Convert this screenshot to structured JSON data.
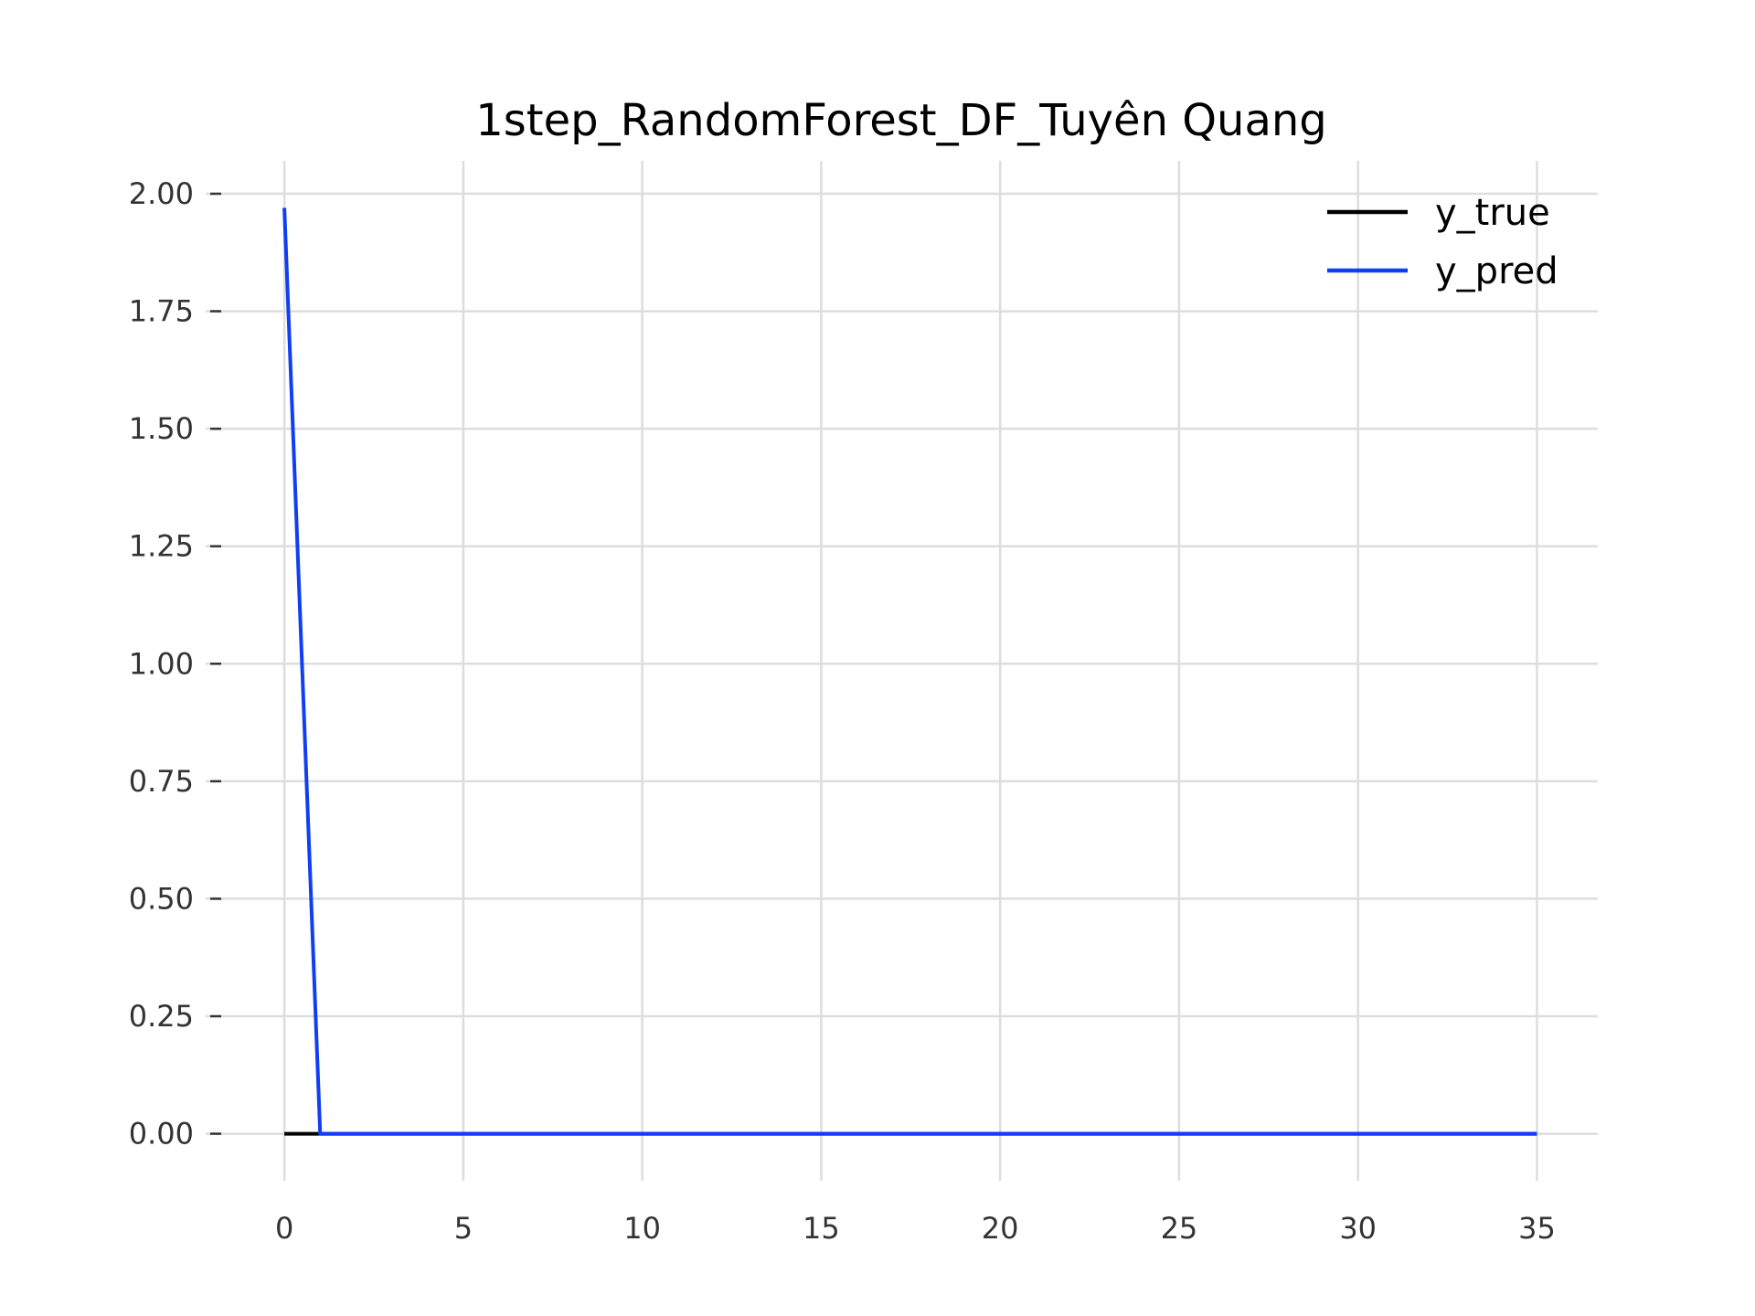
{
  "chart_data": {
    "type": "line",
    "title": "1step_RandomForest_DF_Tuyên Quang",
    "xlabel": "",
    "ylabel": "",
    "xlim": [
      -2.2,
      36.7
    ],
    "ylim": [
      -0.1,
      2.07
    ],
    "x_ticks": [
      0,
      5,
      10,
      15,
      20,
      25,
      30,
      35
    ],
    "x_tick_labels": [
      "0",
      "5",
      "10",
      "15",
      "20",
      "25",
      "30",
      "35"
    ],
    "y_ticks": [
      0,
      0.25,
      0.5,
      0.75,
      1.0,
      1.25,
      1.5,
      1.75,
      2.0
    ],
    "y_tick_labels": [
      "0.00",
      "0.25",
      "0.50",
      "0.75",
      "1.00",
      "1.25",
      "1.50",
      "1.75",
      "2.00"
    ],
    "grid": true,
    "legend_position": "top-right",
    "series": [
      {
        "name": "y_true",
        "color": "#000000",
        "x": [
          0,
          1,
          2,
          3,
          4,
          5,
          6,
          7,
          8,
          9,
          10,
          11,
          12,
          13,
          14,
          15,
          16,
          17,
          18,
          19,
          20,
          21,
          22,
          23,
          24,
          25,
          26,
          27,
          28,
          29,
          30,
          31,
          32,
          33,
          34,
          35
        ],
        "values": [
          0,
          0,
          0,
          0,
          0,
          0,
          0,
          0,
          0,
          0,
          0,
          0,
          0,
          0,
          0,
          0,
          0,
          0,
          0,
          0,
          0,
          0,
          0,
          0,
          0,
          0,
          0,
          0,
          0,
          0,
          0,
          0,
          0,
          0,
          0,
          0
        ]
      },
      {
        "name": "y_pred",
        "color": "#0f3ef5",
        "x": [
          0,
          1,
          2,
          3,
          4,
          5,
          6,
          7,
          8,
          9,
          10,
          11,
          12,
          13,
          14,
          15,
          16,
          17,
          18,
          19,
          20,
          21,
          22,
          23,
          24,
          25,
          26,
          27,
          28,
          29,
          30,
          31,
          32,
          33,
          34,
          35
        ],
        "values": [
          1.97,
          0,
          0,
          0,
          0,
          0,
          0,
          0,
          0,
          0,
          0,
          0,
          0,
          0,
          0,
          0,
          0,
          0,
          0,
          0,
          0,
          0,
          0,
          0,
          0,
          0,
          0,
          0,
          0,
          0,
          0,
          0,
          0,
          0,
          0,
          0
        ]
      }
    ]
  }
}
